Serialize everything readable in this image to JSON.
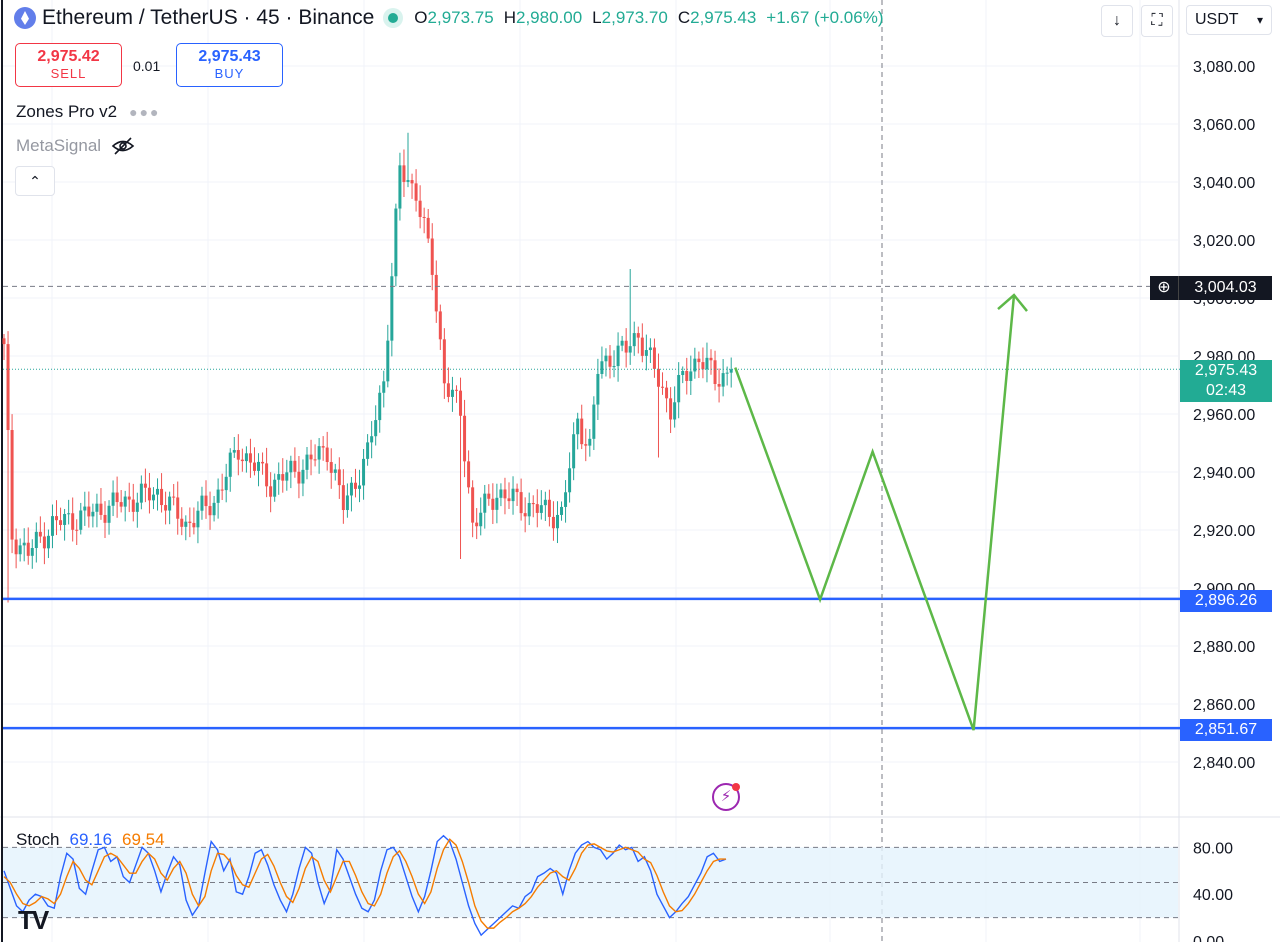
{
  "header": {
    "symbol": "Ethereum / TetherUS · 45 · Binance",
    "ohlc": [
      {
        "key": "O",
        "value": "2,973.75"
      },
      {
        "key": "H",
        "value": "2,980.00"
      },
      {
        "key": "L",
        "value": "2,973.70"
      },
      {
        "key": "C",
        "value": "2,975.43"
      }
    ],
    "change": "+1.67 (+0.06%)",
    "currency": "USDT"
  },
  "trade": {
    "sell_price": "2,975.42",
    "sell_label": "SELL",
    "quantity": "0.01",
    "buy_price": "2,975.43",
    "buy_label": "BUY"
  },
  "indicators": {
    "zones_name": "Zones Pro v2",
    "metasignal_name": "MetaSignal",
    "stoch_name": "Stoch",
    "stoch_k": "69.16",
    "stoch_d": "69.54"
  },
  "tags": {
    "crosshair_price": "3,004.03",
    "last_price": "2,975.43",
    "countdown": "02:43",
    "level_1": "2,896.26",
    "level_2": "2,851.67"
  },
  "colors": {
    "up": "#26a69a",
    "down": "#ef5350",
    "line_blue": "#2962ff",
    "projection": "#5db848",
    "k_line": "#2962ff",
    "d_line": "#f57c00"
  },
  "chart_data": [
    {
      "type": "candlestick",
      "ylim": [
        2826,
        3090
      ],
      "y_ticks": [
        "3,080.00",
        "3,060.00",
        "3,040.00",
        "3,020.00",
        "3,000.00",
        "2,980.00",
        "2,960.00",
        "2,940.00",
        "2,920.00",
        "2,900.00",
        "2,880.00",
        "2,860.00",
        "2,840.00"
      ],
      "y_tick_values": [
        3080,
        3060,
        3040,
        3020,
        3000,
        2980,
        2960,
        2940,
        2920,
        2900,
        2880,
        2860,
        2840
      ],
      "anchors": [
        {
          "i": 0,
          "p": 2982
        },
        {
          "i": 2,
          "p": 2918
        },
        {
          "i": 6,
          "p": 2912
        },
        {
          "i": 12,
          "p": 2922
        },
        {
          "i": 20,
          "p": 2925
        },
        {
          "i": 30,
          "p": 2930
        },
        {
          "i": 38,
          "p": 2933
        },
        {
          "i": 45,
          "p": 2922
        },
        {
          "i": 52,
          "p": 2930
        },
        {
          "i": 58,
          "p": 2948
        },
        {
          "i": 66,
          "p": 2936
        },
        {
          "i": 74,
          "p": 2942
        },
        {
          "i": 80,
          "p": 2948
        },
        {
          "i": 84,
          "p": 2928
        },
        {
          "i": 90,
          "p": 2946
        },
        {
          "i": 94,
          "p": 2972
        },
        {
          "i": 96,
          "p": 3008
        },
        {
          "i": 98,
          "p": 3044
        },
        {
          "i": 102,
          "p": 3037
        },
        {
          "i": 106,
          "p": 3010
        },
        {
          "i": 109,
          "p": 2972
        },
        {
          "i": 113,
          "p": 2960
        },
        {
          "i": 116,
          "p": 2922
        },
        {
          "i": 122,
          "p": 2933
        },
        {
          "i": 130,
          "p": 2928
        },
        {
          "i": 138,
          "p": 2925
        },
        {
          "i": 142,
          "p": 2958
        },
        {
          "i": 145,
          "p": 2948
        },
        {
          "i": 147,
          "p": 2975
        },
        {
          "i": 150,
          "p": 2980
        },
        {
          "i": 154,
          "p": 2982
        },
        {
          "i": 157,
          "p": 2988
        },
        {
          "i": 160,
          "p": 2978
        },
        {
          "i": 165,
          "p": 2962
        },
        {
          "i": 168,
          "p": 2972
        },
        {
          "i": 172,
          "p": 2980
        },
        {
          "i": 176,
          "p": 2972
        },
        {
          "i": 180,
          "p": 2975
        }
      ],
      "count": 181,
      "extreme_highs": [
        {
          "i": 100,
          "p": 3057
        },
        {
          "i": 155,
          "p": 3010
        }
      ],
      "extreme_lows": [
        {
          "i": 1,
          "p": 2895
        },
        {
          "i": 113,
          "p": 2910
        },
        {
          "i": 162,
          "p": 2945
        }
      ],
      "last_close": 2975.43,
      "horizontal_levels": [
        2896.26,
        2851.67
      ],
      "crosshair_price": 3004.03,
      "projection_path": [
        {
          "bar": 181,
          "p": 2976
        },
        {
          "bar": 202,
          "p": 2896
        },
        {
          "bar": 215,
          "p": 2947
        },
        {
          "bar": 240,
          "p": 2851
        },
        {
          "bar": 250,
          "p": 3001
        }
      ]
    },
    {
      "type": "line",
      "name": "Stoch",
      "ylim": [
        0,
        100
      ],
      "y_ticks": [
        "80.00",
        "40.00",
        "0.00"
      ],
      "y_tick_values": [
        80,
        40,
        0
      ],
      "band": [
        20,
        80
      ],
      "mid": 50,
      "series": [
        {
          "name": "%K",
          "values": [
            60,
            45,
            30,
            25,
            35,
            40,
            38,
            30,
            28,
            55,
            75,
            70,
            45,
            40,
            60,
            78,
            80,
            68,
            72,
            55,
            50,
            65,
            80,
            75,
            60,
            42,
            58,
            72,
            65,
            35,
            22,
            30,
            58,
            85,
            78,
            60,
            70,
            42,
            40,
            55,
            75,
            78,
            65,
            48,
            35,
            25,
            40,
            62,
            80,
            75,
            50,
            32,
            45,
            78,
            70,
            55,
            40,
            28,
            25,
            35,
            60,
            78,
            80,
            72,
            55,
            38,
            25,
            38,
            60,
            85,
            90,
            85,
            70,
            50,
            30,
            15,
            5,
            10,
            15,
            20,
            25,
            30,
            28,
            38,
            42,
            55,
            58,
            62,
            58,
            40,
            60,
            75,
            82,
            85,
            80,
            78,
            70,
            75,
            82,
            78,
            80,
            68,
            72,
            60,
            40,
            30,
            20,
            25,
            32,
            38,
            48,
            58,
            72,
            75,
            68,
            70
          ]
        },
        {
          "name": "%D",
          "values": [
            55,
            50,
            40,
            32,
            30,
            33,
            38,
            36,
            32,
            40,
            55,
            68,
            62,
            52,
            48,
            60,
            72,
            75,
            72,
            65,
            58,
            58,
            68,
            75,
            70,
            58,
            52,
            62,
            68,
            58,
            40,
            30,
            38,
            60,
            75,
            74,
            68,
            56,
            48,
            46,
            58,
            70,
            74,
            64,
            50,
            38,
            33,
            45,
            62,
            72,
            68,
            52,
            42,
            55,
            68,
            68,
            56,
            42,
            32,
            30,
            40,
            58,
            72,
            77,
            68,
            55,
            40,
            32,
            42,
            62,
            78,
            87,
            82,
            68,
            50,
            30,
            17,
            11,
            11,
            16,
            20,
            25,
            28,
            32,
            38,
            46,
            52,
            58,
            60,
            55,
            52,
            62,
            75,
            82,
            83,
            80,
            77,
            76,
            78,
            80,
            78,
            76,
            70,
            67,
            56,
            42,
            30,
            25,
            26,
            32,
            40,
            50,
            60,
            68,
            70,
            70
          ]
        }
      ]
    }
  ]
}
